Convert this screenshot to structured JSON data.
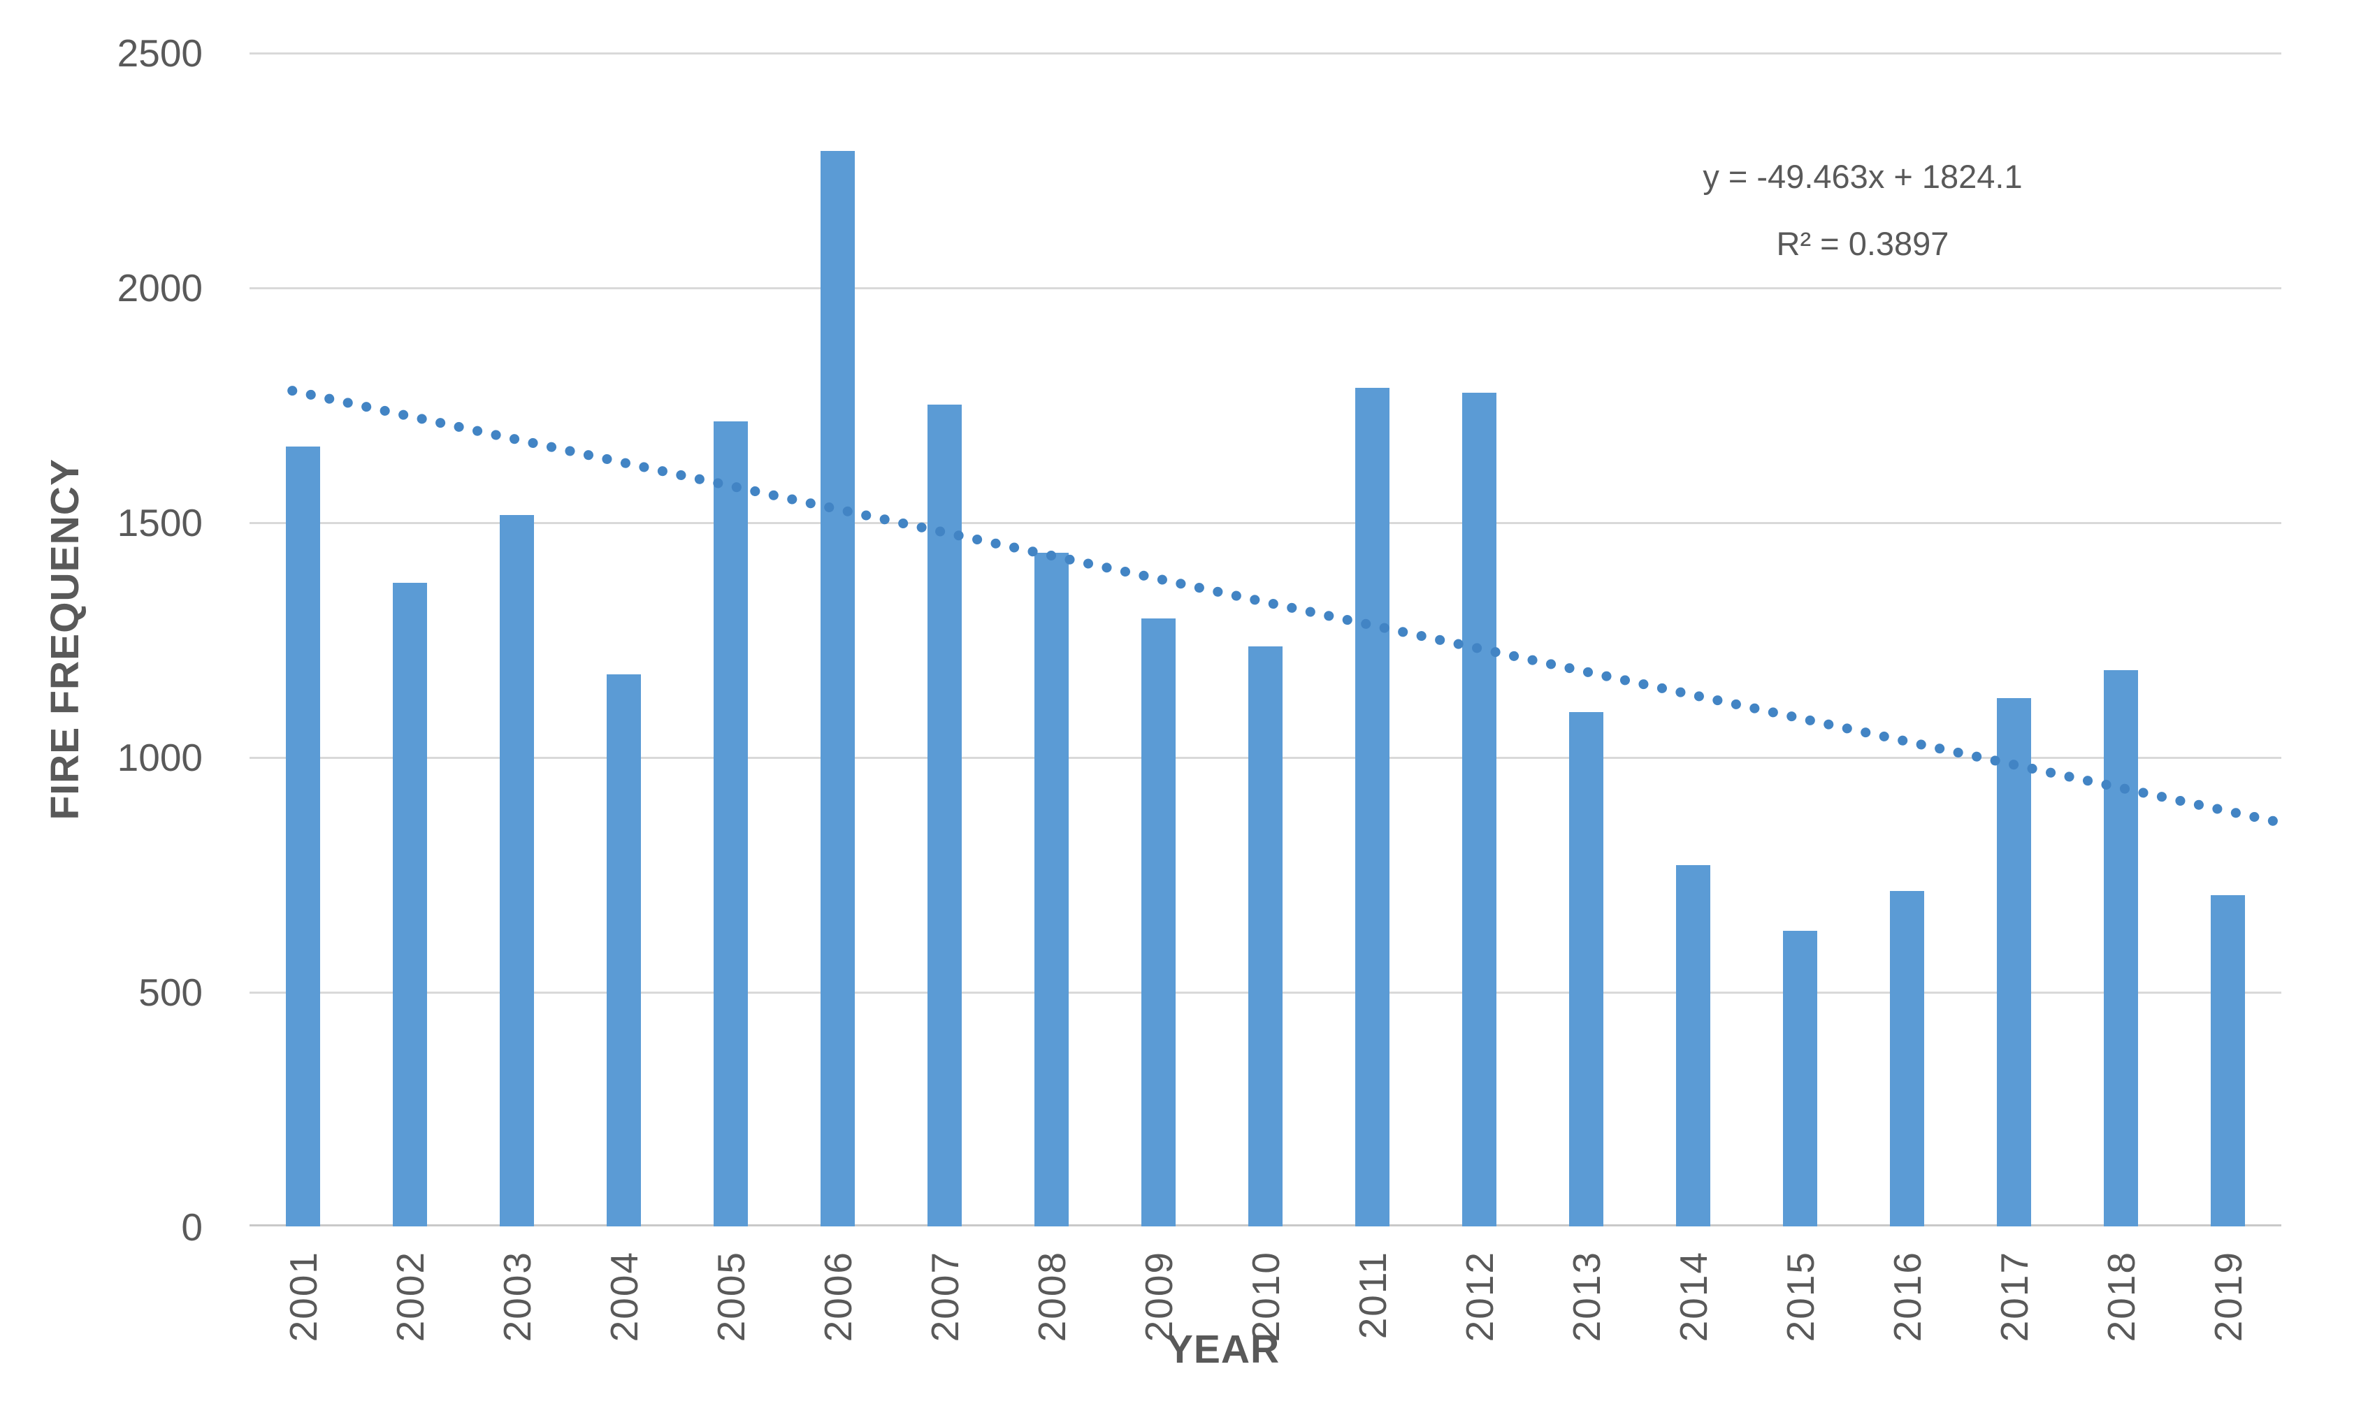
{
  "chart_data": {
    "type": "bar",
    "title": "",
    "categories": [
      "2001",
      "2002",
      "2003",
      "2004",
      "2005",
      "2006",
      "2007",
      "2008",
      "2009",
      "2010",
      "2011",
      "2012",
      "2013",
      "2014",
      "2015",
      "2016",
      "2017",
      "2018",
      "2019"
    ],
    "values": [
      1660,
      1370,
      1515,
      1175,
      1715,
      2290,
      1750,
      1435,
      1295,
      1235,
      1785,
      1775,
      1095,
      770,
      630,
      715,
      1125,
      1185,
      705
    ],
    "xlabel": "YEAR",
    "ylabel": "FIRE FREQUENCY",
    "ylim": [
      0,
      2500
    ],
    "yticks": [
      0,
      500,
      1000,
      1500,
      2000,
      2500
    ],
    "grid": true,
    "legend_position": "none",
    "bar_color": "#5B9BD5",
    "gridline_color": "#D9D9D9",
    "axis_line_color": "#C9C9C9",
    "text_color": "#595959",
    "trendline": {
      "equation_label": "y = -49.463x + 1824.1",
      "r2_label": "R² = 0.3897",
      "slope": -49.463,
      "intercept": 1824.1,
      "color": "#4284C4",
      "style": "dotted"
    }
  }
}
